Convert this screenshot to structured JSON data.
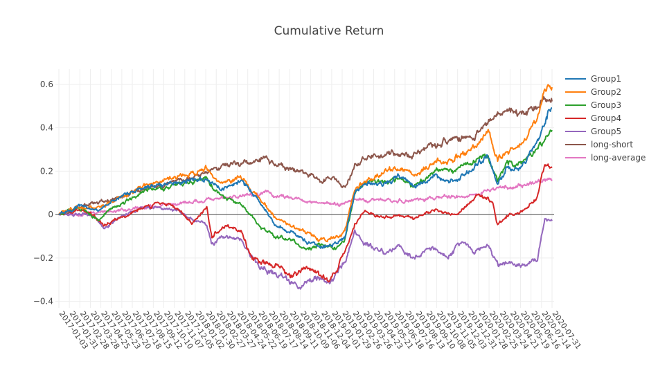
{
  "chart_data": {
    "type": "line",
    "title": "Cumulative Return",
    "xlabel": "",
    "ylabel": "",
    "ylim": [
      -0.43,
      0.67
    ],
    "yticks": [
      0.6,
      0.4,
      0.2,
      0,
      -0.2,
      -0.4
    ],
    "ytick_labels": [
      "0.6",
      "0.4",
      "0.2",
      "0",
      "−0.2",
      "−0.4"
    ],
    "grid": true,
    "legend_position": "top-right",
    "x_start": "2017-01-03",
    "x_end": "2020-07-31",
    "x_tick_labels": [
      "2017-01-03",
      "2017-01-31",
      "2017-02-28",
      "2017-03-28",
      "2017-04-25",
      "2017-05-23",
      "2017-06-20",
      "2017-07-18",
      "2017-08-15",
      "2017-09-12",
      "2017-10-10",
      "2017-11-07",
      "2017-12-05",
      "2018-01-02",
      "2018-01-30",
      "2018-02-27",
      "2018-03-27",
      "2018-04-24",
      "2018-05-22",
      "2018-06-19",
      "2018-07-17",
      "2018-08-14",
      "2018-09-11",
      "2018-10-09",
      "2018-11-06",
      "2018-12-04",
      "2019-01-01",
      "2019-01-29",
      "2019-02-26",
      "2019-03-26",
      "2019-04-23",
      "2019-05-21",
      "2019-06-18",
      "2019-07-16",
      "2019-08-13",
      "2019-09-10",
      "2019-10-08",
      "2019-11-05",
      "2019-12-03",
      "2019-12-31",
      "2020-01-28",
      "2020-02-25",
      "2020-03-24",
      "2020-04-21",
      "2020-05-19",
      "2020-06-16",
      "2020-07-14",
      "2020-07-31"
    ],
    "series": [
      {
        "name": "Group1",
        "color": "#1f77b4",
        "knots": [
          [
            0,
            0
          ],
          [
            0.04,
            0.04
          ],
          [
            0.08,
            0.02
          ],
          [
            0.1,
            0.05
          ],
          [
            0.13,
            0.09
          ],
          [
            0.18,
            0.13
          ],
          [
            0.24,
            0.15
          ],
          [
            0.3,
            0.17
          ],
          [
            0.33,
            0.11
          ],
          [
            0.37,
            0.16
          ],
          [
            0.41,
            0.05
          ],
          [
            0.44,
            -0.05
          ],
          [
            0.47,
            -0.08
          ],
          [
            0.5,
            -0.12
          ],
          [
            0.53,
            -0.15
          ],
          [
            0.56,
            -0.14
          ],
          [
            0.58,
            -0.1
          ],
          [
            0.6,
            0.1
          ],
          [
            0.62,
            0.15
          ],
          [
            0.66,
            0.14
          ],
          [
            0.69,
            0.18
          ],
          [
            0.72,
            0.13
          ],
          [
            0.76,
            0.18
          ],
          [
            0.8,
            0.15
          ],
          [
            0.84,
            0.21
          ],
          [
            0.87,
            0.28
          ],
          [
            0.89,
            0.14
          ],
          [
            0.91,
            0.22
          ],
          [
            0.94,
            0.22
          ],
          [
            0.97,
            0.34
          ],
          [
            1.0,
            0.5
          ]
        ]
      },
      {
        "name": "Group2",
        "color": "#ff7f0e",
        "knots": [
          [
            0,
            0
          ],
          [
            0.04,
            0.04
          ],
          [
            0.07,
            0.03
          ],
          [
            0.1,
            0.05
          ],
          [
            0.13,
            0.08
          ],
          [
            0.18,
            0.14
          ],
          [
            0.24,
            0.17
          ],
          [
            0.3,
            0.21
          ],
          [
            0.33,
            0.14
          ],
          [
            0.37,
            0.17
          ],
          [
            0.41,
            0.07
          ],
          [
            0.44,
            -0.02
          ],
          [
            0.47,
            -0.05
          ],
          [
            0.5,
            -0.08
          ],
          [
            0.53,
            -0.12
          ],
          [
            0.56,
            -0.1
          ],
          [
            0.58,
            -0.08
          ],
          [
            0.6,
            0.13
          ],
          [
            0.62,
            0.15
          ],
          [
            0.66,
            0.2
          ],
          [
            0.69,
            0.21
          ],
          [
            0.72,
            0.18
          ],
          [
            0.76,
            0.24
          ],
          [
            0.8,
            0.25
          ],
          [
            0.84,
            0.31
          ],
          [
            0.87,
            0.38
          ],
          [
            0.89,
            0.25
          ],
          [
            0.91,
            0.3
          ],
          [
            0.94,
            0.33
          ],
          [
            0.97,
            0.44
          ],
          [
            0.985,
            0.58
          ],
          [
            1.0,
            0.6
          ]
        ]
      },
      {
        "name": "Group3",
        "color": "#2ca02c",
        "knots": [
          [
            0,
            0
          ],
          [
            0.04,
            0.03
          ],
          [
            0.08,
            -0.03
          ],
          [
            0.1,
            0.02
          ],
          [
            0.13,
            0.06
          ],
          [
            0.18,
            0.11
          ],
          [
            0.24,
            0.14
          ],
          [
            0.3,
            0.16
          ],
          [
            0.33,
            0.08
          ],
          [
            0.37,
            0.05
          ],
          [
            0.41,
            -0.06
          ],
          [
            0.44,
            -0.1
          ],
          [
            0.47,
            -0.12
          ],
          [
            0.5,
            -0.16
          ],
          [
            0.53,
            -0.14
          ],
          [
            0.56,
            -0.16
          ],
          [
            0.58,
            -0.12
          ],
          [
            0.6,
            0.1
          ],
          [
            0.62,
            0.15
          ],
          [
            0.66,
            0.15
          ],
          [
            0.69,
            0.16
          ],
          [
            0.72,
            0.13
          ],
          [
            0.76,
            0.2
          ],
          [
            0.8,
            0.2
          ],
          [
            0.84,
            0.24
          ],
          [
            0.87,
            0.28
          ],
          [
            0.89,
            0.16
          ],
          [
            0.91,
            0.24
          ],
          [
            0.94,
            0.24
          ],
          [
            0.97,
            0.3
          ],
          [
            1.0,
            0.4
          ]
        ]
      },
      {
        "name": "Group4",
        "color": "#d62728",
        "knots": [
          [
            0,
            0
          ],
          [
            0.04,
            0.02
          ],
          [
            0.07,
            0.0
          ],
          [
            0.09,
            -0.05
          ],
          [
            0.12,
            -0.02
          ],
          [
            0.16,
            0.02
          ],
          [
            0.2,
            0.05
          ],
          [
            0.24,
            0.03
          ],
          [
            0.27,
            -0.04
          ],
          [
            0.3,
            0.04
          ],
          [
            0.31,
            -0.1
          ],
          [
            0.34,
            -0.05
          ],
          [
            0.37,
            -0.08
          ],
          [
            0.39,
            -0.2
          ],
          [
            0.41,
            -0.22
          ],
          [
            0.44,
            -0.24
          ],
          [
            0.47,
            -0.28
          ],
          [
            0.5,
            -0.24
          ],
          [
            0.53,
            -0.28
          ],
          [
            0.55,
            -0.3
          ],
          [
            0.58,
            -0.18
          ],
          [
            0.6,
            -0.05
          ],
          [
            0.62,
            0.02
          ],
          [
            0.66,
            -0.02
          ],
          [
            0.69,
            0.0
          ],
          [
            0.72,
            -0.02
          ],
          [
            0.76,
            0.02
          ],
          [
            0.8,
            0.0
          ],
          [
            0.83,
            0.04
          ],
          [
            0.85,
            0.1
          ],
          [
            0.88,
            0.05
          ],
          [
            0.89,
            -0.05
          ],
          [
            0.91,
            0.0
          ],
          [
            0.94,
            0.01
          ],
          [
            0.97,
            0.08
          ],
          [
            0.985,
            0.23
          ],
          [
            1.0,
            0.22
          ]
        ]
      },
      {
        "name": "Group5",
        "color": "#9467bd",
        "knots": [
          [
            0,
            0
          ],
          [
            0.04,
            0.0
          ],
          [
            0.07,
            0.0
          ],
          [
            0.09,
            -0.07
          ],
          [
            0.12,
            -0.02
          ],
          [
            0.16,
            0.03
          ],
          [
            0.2,
            0.03
          ],
          [
            0.24,
            0.02
          ],
          [
            0.27,
            -0.02
          ],
          [
            0.3,
            -0.05
          ],
          [
            0.31,
            -0.13
          ],
          [
            0.34,
            -0.1
          ],
          [
            0.37,
            -0.12
          ],
          [
            0.39,
            -0.2
          ],
          [
            0.41,
            -0.24
          ],
          [
            0.44,
            -0.27
          ],
          [
            0.47,
            -0.31
          ],
          [
            0.49,
            -0.33
          ],
          [
            0.52,
            -0.28
          ],
          [
            0.55,
            -0.32
          ],
          [
            0.58,
            -0.22
          ],
          [
            0.6,
            -0.08
          ],
          [
            0.62,
            -0.13
          ],
          [
            0.66,
            -0.18
          ],
          [
            0.69,
            -0.15
          ],
          [
            0.72,
            -0.2
          ],
          [
            0.76,
            -0.15
          ],
          [
            0.79,
            -0.2
          ],
          [
            0.82,
            -0.12
          ],
          [
            0.84,
            -0.17
          ],
          [
            0.87,
            -0.15
          ],
          [
            0.89,
            -0.23
          ],
          [
            0.91,
            -0.22
          ],
          [
            0.94,
            -0.23
          ],
          [
            0.97,
            -0.2
          ],
          [
            0.985,
            -0.02
          ],
          [
            1.0,
            -0.03
          ]
        ]
      },
      {
        "name": "long-short",
        "color": "#8c564b",
        "knots": [
          [
            0,
            0
          ],
          [
            0.04,
            0.03
          ],
          [
            0.08,
            0.06
          ],
          [
            0.12,
            0.08
          ],
          [
            0.16,
            0.11
          ],
          [
            0.2,
            0.13
          ],
          [
            0.24,
            0.15
          ],
          [
            0.28,
            0.17
          ],
          [
            0.31,
            0.21
          ],
          [
            0.35,
            0.23
          ],
          [
            0.39,
            0.24
          ],
          [
            0.41,
            0.26
          ],
          [
            0.44,
            0.23
          ],
          [
            0.47,
            0.21
          ],
          [
            0.5,
            0.19
          ],
          [
            0.53,
            0.16
          ],
          [
            0.56,
            0.17
          ],
          [
            0.58,
            0.12
          ],
          [
            0.6,
            0.23
          ],
          [
            0.62,
            0.25
          ],
          [
            0.66,
            0.28
          ],
          [
            0.69,
            0.28
          ],
          [
            0.72,
            0.27
          ],
          [
            0.76,
            0.33
          ],
          [
            0.8,
            0.35
          ],
          [
            0.84,
            0.36
          ],
          [
            0.87,
            0.42
          ],
          [
            0.9,
            0.47
          ],
          [
            0.94,
            0.48
          ],
          [
            0.97,
            0.48
          ],
          [
            0.985,
            0.52
          ],
          [
            1.0,
            0.53
          ]
        ]
      },
      {
        "name": "long-average",
        "color": "#e377c2",
        "knots": [
          [
            0,
            0
          ],
          [
            0.04,
            0.0
          ],
          [
            0.08,
            0.01
          ],
          [
            0.12,
            0.02
          ],
          [
            0.16,
            0.03
          ],
          [
            0.2,
            0.04
          ],
          [
            0.24,
            0.05
          ],
          [
            0.28,
            0.06
          ],
          [
            0.31,
            0.07
          ],
          [
            0.35,
            0.08
          ],
          [
            0.39,
            0.09
          ],
          [
            0.42,
            0.1
          ],
          [
            0.45,
            0.08
          ],
          [
            0.48,
            0.07
          ],
          [
            0.51,
            0.06
          ],
          [
            0.54,
            0.05
          ],
          [
            0.57,
            0.05
          ],
          [
            0.6,
            0.07
          ],
          [
            0.64,
            0.07
          ],
          [
            0.68,
            0.06
          ],
          [
            0.72,
            0.07
          ],
          [
            0.76,
            0.08
          ],
          [
            0.8,
            0.08
          ],
          [
            0.84,
            0.09
          ],
          [
            0.88,
            0.12
          ],
          [
            0.92,
            0.13
          ],
          [
            0.96,
            0.14
          ],
          [
            1.0,
            0.17
          ]
        ]
      }
    ]
  }
}
